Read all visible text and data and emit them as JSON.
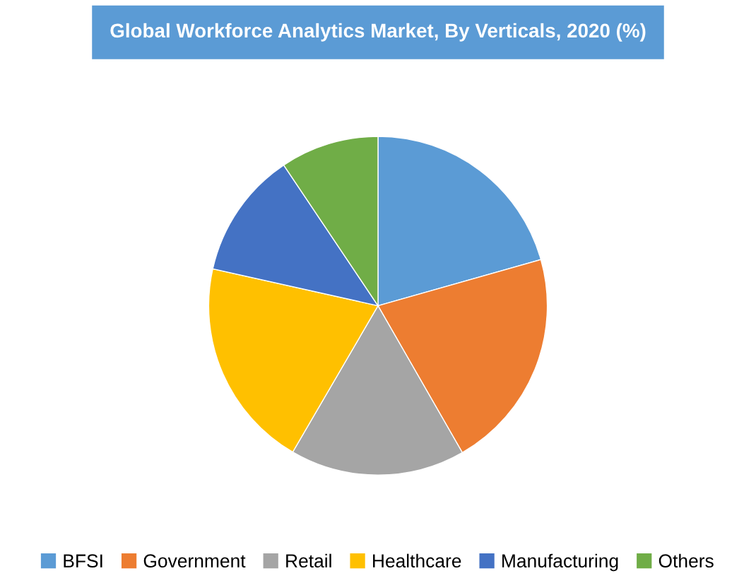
{
  "chart_data": {
    "type": "pie",
    "title": "Global Workforce Analytics Market, By Verticals, 2020 (%)",
    "categories": [
      "BFSI",
      "Government",
      "Retail",
      "Healthcare",
      "Manufacturing",
      "Others"
    ],
    "values": [
      20.6,
      21.1,
      16.7,
      20.1,
      12.1,
      9.4
    ],
    "colors": [
      "#5b9bd5",
      "#ed7d31",
      "#a5a5a5",
      "#ffc000",
      "#4472c4",
      "#70ad47"
    ],
    "legend": "bottom"
  }
}
